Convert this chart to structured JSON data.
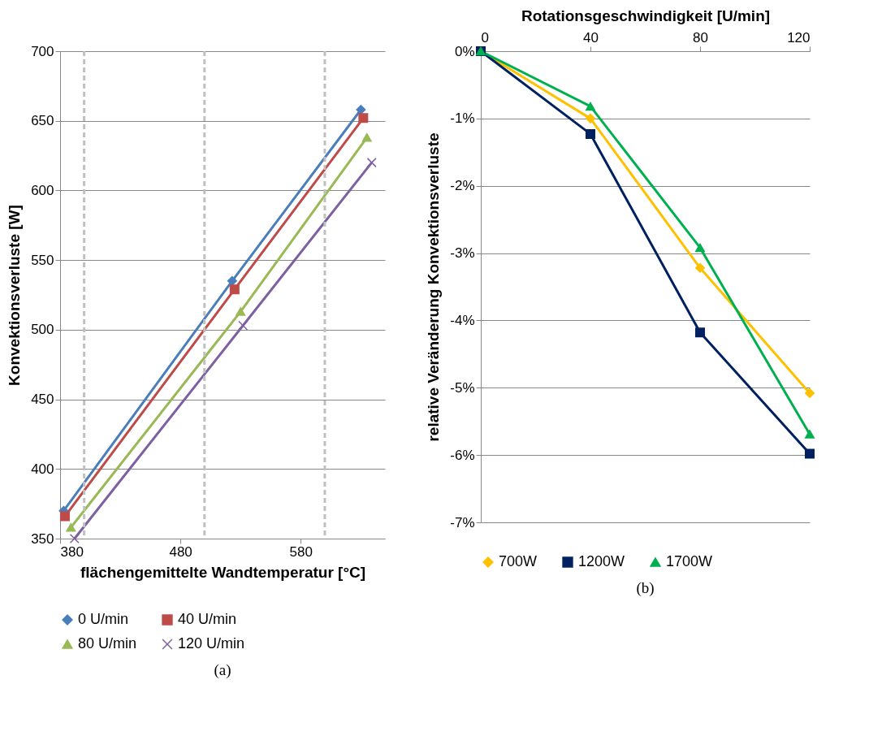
{
  "chart_data": [
    {
      "type": "line",
      "xlabel": "flächengemittelte Wandtemperatur [°C]",
      "ylabel": "Konvektionsverluste [W]",
      "xlim": [
        380,
        650
      ],
      "xticks": [
        380,
        480,
        580
      ],
      "ylim": [
        350,
        700
      ],
      "yticks": [
        350,
        400,
        450,
        500,
        550,
        600,
        650,
        700
      ],
      "grid": "y",
      "legend": "bottom",
      "annotations": [
        "(a)"
      ],
      "ref_lines": [
        {
          "axis": "x",
          "value": 400,
          "color": "#c0c0c0",
          "line_style": "dashed"
        },
        {
          "axis": "x",
          "value": 500,
          "color": "#c0c0c0",
          "line_style": "dashed"
        },
        {
          "axis": "x",
          "value": 600,
          "color": "#c0c0c0",
          "line_style": "dashed"
        }
      ],
      "series": [
        {
          "name": "0 U/min",
          "color": "#4a7ebb",
          "marker": "diamond",
          "x": [
            383,
            523,
            630
          ],
          "values": [
            370,
            535,
            658
          ]
        },
        {
          "name": "40 U/min",
          "color": "#be4b48",
          "marker": "square",
          "x": [
            384,
            525,
            632
          ],
          "values": [
            366,
            529,
            652
          ]
        },
        {
          "name": "80 U/min",
          "color": "#98b954",
          "marker": "triangle",
          "x": [
            389,
            530,
            635
          ],
          "values": [
            358,
            513,
            638
          ]
        },
        {
          "name": "120 U/min",
          "color": "#7d60a0",
          "marker": "cross",
          "x": [
            392,
            532,
            639
          ],
          "values": [
            350,
            503,
            620
          ]
        }
      ]
    },
    {
      "type": "line",
      "xlabel": "Rotationsgeschwindigkeit [U/min]",
      "ylabel": "relative Veränderung Konvektionsverluste",
      "xlim": [
        0,
        120
      ],
      "xticks": [
        0,
        40,
        80,
        120
      ],
      "ylim": [
        -7,
        0
      ],
      "yticks": [
        {
          "value": 0,
          "label": "0%"
        },
        {
          "value": -1,
          "label": "-1%"
        },
        {
          "value": -2,
          "label": "-2%"
        },
        {
          "value": -3,
          "label": "-3%"
        },
        {
          "value": -4,
          "label": "-4%"
        },
        {
          "value": -5,
          "label": "-5%"
        },
        {
          "value": -6,
          "label": "-6%"
        },
        {
          "value": -7,
          "label": "-7%"
        }
      ],
      "grid": "y",
      "legend": "bottom",
      "annotations": [
        "(b)"
      ],
      "series": [
        {
          "name": "700W",
          "color": "#ffc000",
          "marker": "diamond",
          "x": [
            0,
            40,
            80,
            120
          ],
          "values": [
            0,
            -1.0,
            -3.22,
            -5.08
          ]
        },
        {
          "name": "1200W",
          "color": "#002060",
          "marker": "square",
          "x": [
            0,
            40,
            80,
            120
          ],
          "values": [
            0,
            -1.23,
            -4.18,
            -5.98
          ]
        },
        {
          "name": "1700W",
          "color": "#00b050",
          "marker": "triangle",
          "x": [
            0,
            40,
            80,
            120
          ],
          "values": [
            0,
            -0.82,
            -2.92,
            -5.69
          ]
        }
      ]
    }
  ]
}
